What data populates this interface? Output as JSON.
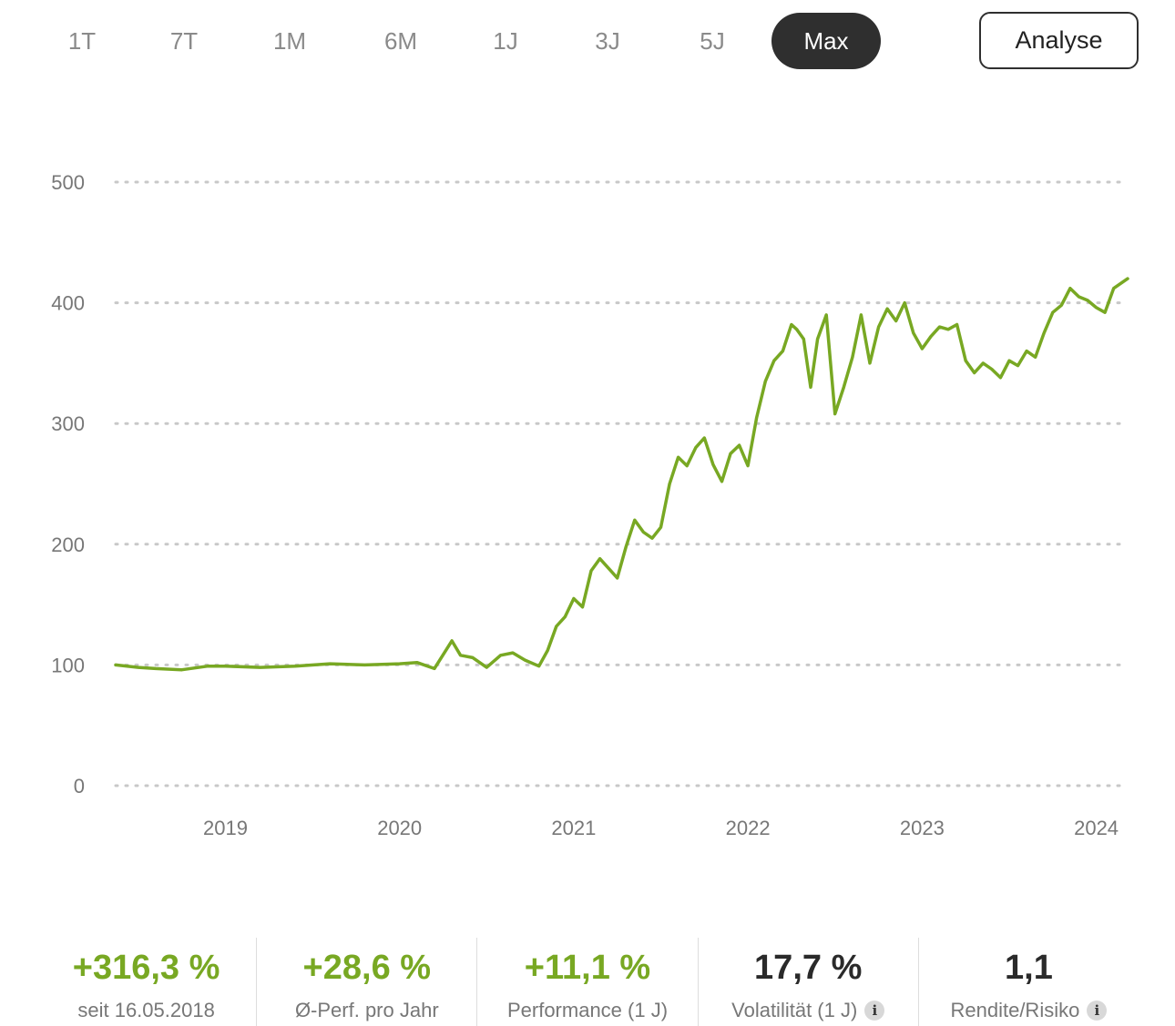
{
  "range_tabs": [
    {
      "label": "1T",
      "active": false
    },
    {
      "label": "7T",
      "active": false
    },
    {
      "label": "1M",
      "active": false
    },
    {
      "label": "6M",
      "active": false
    },
    {
      "label": "1J",
      "active": false
    },
    {
      "label": "3J",
      "active": false
    },
    {
      "label": "5J",
      "active": false
    },
    {
      "label": "Max",
      "active": true
    }
  ],
  "analyse_label": "Analyse",
  "colors": {
    "line": "#78a823",
    "positive": "#78a823",
    "active_tab_bg": "#2f2f2f",
    "grid": "#c8c8c8"
  },
  "chart_data": {
    "type": "line",
    "y_ticks": [
      "500",
      "400",
      "300",
      "200",
      "100",
      "0"
    ],
    "x_ticks": [
      "2019",
      "2020",
      "2021",
      "2022",
      "2023",
      "2024"
    ],
    "ylim": [
      0,
      500
    ],
    "xlim": [
      2018.37,
      2024.18
    ],
    "grid": "horizontal-dotted",
    "series": [
      {
        "x": [
          2018.37,
          2018.5,
          2018.6,
          2018.75,
          2018.9,
          2019.0,
          2019.2,
          2019.4,
          2019.6,
          2019.8,
          2020.0,
          2020.1,
          2020.2,
          2020.3,
          2020.35,
          2020.42,
          2020.5,
          2020.58,
          2020.65,
          2020.72,
          2020.8,
          2020.85,
          2020.9,
          2020.95,
          2021.0,
          2021.05,
          2021.1,
          2021.15,
          2021.2,
          2021.25,
          2021.3,
          2021.35,
          2021.4,
          2021.45,
          2021.5,
          2021.55,
          2021.6,
          2021.65,
          2021.7,
          2021.75,
          2021.8,
          2021.85,
          2021.9,
          2021.95,
          2022.0,
          2022.05,
          2022.1,
          2022.15,
          2022.2,
          2022.25,
          2022.28,
          2022.32,
          2022.36,
          2022.4,
          2022.45,
          2022.5,
          2022.55,
          2022.6,
          2022.65,
          2022.7,
          2022.75,
          2022.8,
          2022.85,
          2022.9,
          2022.95,
          2023.0,
          2023.05,
          2023.1,
          2023.15,
          2023.2,
          2023.25,
          2023.3,
          2023.35,
          2023.4,
          2023.45,
          2023.5,
          2023.55,
          2023.6,
          2023.65,
          2023.7,
          2023.75,
          2023.8,
          2023.85,
          2023.9,
          2023.95,
          2024.0,
          2024.05,
          2024.1,
          2024.18
        ],
        "y": [
          100,
          98,
          97,
          96,
          99,
          99,
          98,
          99,
          101,
          100,
          101,
          102,
          97,
          120,
          108,
          106,
          98,
          108,
          110,
          104,
          99,
          112,
          132,
          140,
          155,
          148,
          178,
          188,
          180,
          172,
          198,
          220,
          210,
          205,
          214,
          250,
          272,
          265,
          280,
          288,
          266,
          252,
          275,
          282,
          265,
          305,
          335,
          352,
          360,
          382,
          378,
          370,
          330,
          370,
          390,
          308,
          330,
          355,
          390,
          350,
          380,
          395,
          385,
          400,
          375,
          362,
          372,
          380,
          378,
          382,
          352,
          342,
          350,
          345,
          338,
          352,
          348,
          360,
          355,
          375,
          392,
          398,
          412,
          405,
          402,
          396,
          392,
          412,
          420
        ]
      }
    ]
  },
  "stats": [
    {
      "value": "+316,3 %",
      "label": "seit 16.05.2018",
      "tone": "pos",
      "info": false
    },
    {
      "value": "+28,6 %",
      "label": "Ø-Perf. pro Jahr",
      "tone": "pos",
      "info": false
    },
    {
      "value": "+11,1 %",
      "label": "Performance (1 J)",
      "tone": "pos",
      "info": false
    },
    {
      "value": "17,7 %",
      "label": "Volatilität (1 J)",
      "tone": "neutral",
      "info": true
    },
    {
      "value": "1,1",
      "label": "Rendite/Risiko",
      "tone": "neutral",
      "info": true
    }
  ],
  "info_icon_glyph": "i"
}
